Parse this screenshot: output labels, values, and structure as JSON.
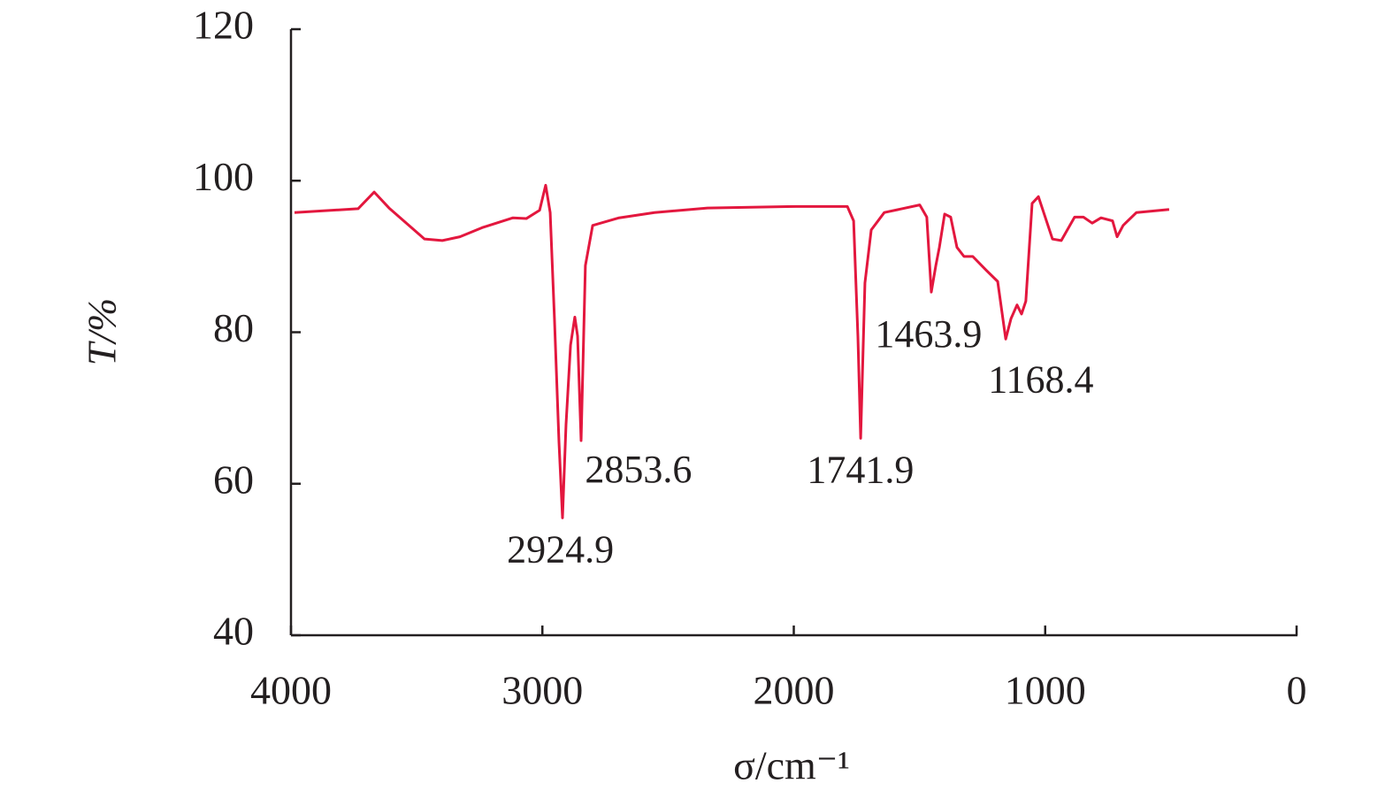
{
  "chart_data": {
    "type": "line",
    "x_label": "σ/cm⁻¹",
    "y_label": "T/%",
    "xlim": [
      4000,
      0
    ],
    "xticks": [
      4000,
      3000,
      2000,
      1000,
      0
    ],
    "ylim": [
      40,
      120
    ],
    "yticks": [
      40,
      60,
      80,
      100,
      120
    ],
    "series": [
      {
        "color": "#e3173e",
        "x": [
          3986,
          3733,
          3669,
          3610,
          3469,
          3398,
          3328,
          3240,
          3117,
          3064,
          3011,
          2987,
          2969,
          2952,
          2934,
          2920,
          2906,
          2888,
          2871,
          2860,
          2846,
          2829,
          2800,
          2695,
          2554,
          2343,
          1991,
          1787,
          1762,
          1745,
          1734,
          1717,
          1692,
          1640,
          1499,
          1471,
          1453,
          1435,
          1421,
          1400,
          1376,
          1351,
          1323,
          1288,
          1235,
          1189,
          1157,
          1136,
          1112,
          1094,
          1077,
          1052,
          1027,
          1006,
          971,
          936,
          883,
          848,
          813,
          778,
          732,
          714,
          690,
          637,
          507
        ],
        "values": [
          95.8,
          96.3,
          98.5,
          96.4,
          92.3,
          92.1,
          92.6,
          93.8,
          95.1,
          95.0,
          96.1,
          99.4,
          95.8,
          81.8,
          65.5,
          55.5,
          67.8,
          78.3,
          82.0,
          79.5,
          65.7,
          88.8,
          94.1,
          95.1,
          95.8,
          96.4,
          96.6,
          96.6,
          94.7,
          79.5,
          66.0,
          86.5,
          93.5,
          95.8,
          96.8,
          95.2,
          85.3,
          88.8,
          91.2,
          95.6,
          95.2,
          91.2,
          90.0,
          90.0,
          88.2,
          86.7,
          79.1,
          81.8,
          83.6,
          82.4,
          84.1,
          97.0,
          97.9,
          95.8,
          92.3,
          92.1,
          95.2,
          95.2,
          94.4,
          95.1,
          94.7,
          92.6,
          94.1,
          95.8,
          96.2
        ]
      }
    ],
    "annotations": [
      {
        "label": "2924.9",
        "x": 2924.9,
        "y": 55.5
      },
      {
        "label": "2853.6",
        "x": 2853.6,
        "y": 65.7
      },
      {
        "label": "1741.9",
        "x": 1741.9,
        "y": 66.0
      },
      {
        "label": "1463.9",
        "x": 1463.9,
        "y": 84.5
      },
      {
        "label": "1168.4",
        "x": 1168.4,
        "y": 79.1
      }
    ]
  }
}
